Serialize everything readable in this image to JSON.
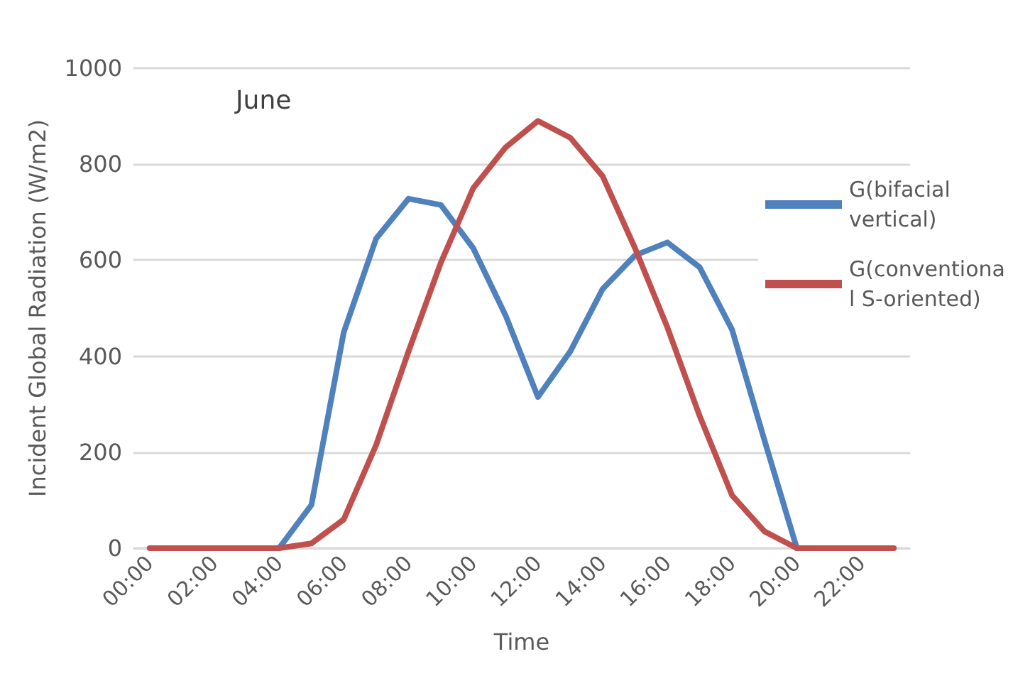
{
  "chart_data": {
    "type": "line",
    "categories": [
      "00:00",
      null,
      "02:00",
      null,
      "04:00",
      null,
      "06:00",
      null,
      "08:00",
      null,
      "10:00",
      null,
      "12:00",
      null,
      "14:00",
      null,
      "16:00",
      null,
      "18:00",
      null,
      "20:00",
      null,
      "22:00",
      null
    ],
    "series": [
      {
        "name": "G(bifacial vertical)",
        "color": "#4f81bd",
        "values": [
          null,
          null,
          null,
          0,
          0,
          90,
          450,
          645,
          728,
          715,
          625,
          485,
          315,
          410,
          540,
          610,
          637,
          585,
          455,
          225,
          0,
          0,
          null,
          null
        ]
      },
      {
        "name": "G(conventional S-oriented)",
        "color": "#c0504d",
        "values": [
          0,
          0,
          0,
          0,
          0,
          10,
          60,
          215,
          410,
          595,
          750,
          835,
          890,
          855,
          775,
          625,
          460,
          275,
          110,
          35,
          0,
          0,
          0,
          0
        ]
      }
    ],
    "xlabel": "Time",
    "ylabel": "Incident Global Radiation (W/m2)",
    "annotations": [
      "June"
    ],
    "ylim": [
      0,
      1000
    ],
    "yticks": [
      0,
      200,
      400,
      600,
      800,
      1000
    ],
    "grid": "y",
    "legend": "right",
    "marker": "none",
    "line_style": "solid"
  }
}
